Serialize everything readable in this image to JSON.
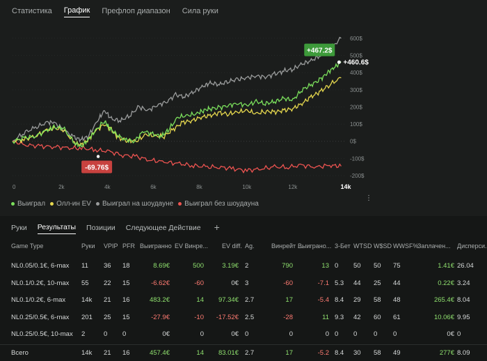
{
  "top_tabs": [
    {
      "label": "Статистика",
      "active": false
    },
    {
      "label": "График",
      "active": true
    },
    {
      "label": "Префлоп диапазон",
      "active": false
    },
    {
      "label": "Сила руки",
      "active": false
    }
  ],
  "chart_data": {
    "type": "line",
    "x_max_label": "14k",
    "x_ticks": [
      "0",
      "2k",
      "4k",
      "6k",
      "8k",
      "10k",
      "12k",
      "14k"
    ],
    "x_range": [
      0,
      14500
    ],
    "y_ticks": [
      "600$",
      "500$",
      "400$",
      "300$",
      "200$",
      "100$",
      "0$",
      "-100$",
      "-200$"
    ],
    "y_range": [
      -200,
      620
    ],
    "series": [
      {
        "name": "Выиграл",
        "color": "#7be05c",
        "points": [
          [
            0,
            0
          ],
          [
            500,
            20
          ],
          [
            1000,
            30
          ],
          [
            1500,
            65
          ],
          [
            1800,
            80
          ],
          [
            2200,
            80
          ],
          [
            2700,
            -10
          ],
          [
            3000,
            -30
          ],
          [
            3300,
            10
          ],
          [
            3600,
            60
          ],
          [
            4000,
            120
          ],
          [
            4200,
            80
          ],
          [
            4500,
            40
          ],
          [
            4900,
            10
          ],
          [
            5300,
            0
          ],
          [
            5700,
            60
          ],
          [
            6100,
            40
          ],
          [
            6500,
            30
          ],
          [
            6800,
            70
          ],
          [
            7200,
            140
          ],
          [
            7600,
            150
          ],
          [
            8000,
            160
          ],
          [
            8300,
            180
          ],
          [
            8600,
            190
          ],
          [
            9000,
            195
          ],
          [
            9400,
            210
          ],
          [
            9800,
            220
          ],
          [
            10200,
            210
          ],
          [
            10600,
            230
          ],
          [
            11000,
            220
          ],
          [
            11400,
            230
          ],
          [
            11800,
            250
          ],
          [
            12200,
            240
          ],
          [
            12600,
            300
          ],
          [
            13000,
            330
          ],
          [
            13400,
            360
          ],
          [
            13700,
            400
          ],
          [
            14000,
            430
          ],
          [
            14300,
            460.6
          ]
        ]
      },
      {
        "name": "Олл-ин EV",
        "color": "#e6d84e",
        "points": [
          [
            0,
            0
          ],
          [
            500,
            10
          ],
          [
            1000,
            30
          ],
          [
            1500,
            65
          ],
          [
            1800,
            75
          ],
          [
            2200,
            70
          ],
          [
            2700,
            -10
          ],
          [
            3000,
            -20
          ],
          [
            3300,
            10
          ],
          [
            3600,
            60
          ],
          [
            4000,
            100
          ],
          [
            4300,
            70
          ],
          [
            4600,
            20
          ],
          [
            5000,
            5
          ],
          [
            5400,
            0
          ],
          [
            5800,
            40
          ],
          [
            6200,
            30
          ],
          [
            6600,
            30
          ],
          [
            7000,
            70
          ],
          [
            7400,
            110
          ],
          [
            7800,
            120
          ],
          [
            8200,
            140
          ],
          [
            8600,
            150
          ],
          [
            9000,
            165
          ],
          [
            9400,
            160
          ],
          [
            9800,
            170
          ],
          [
            10200,
            180
          ],
          [
            10600,
            160
          ],
          [
            11000,
            175
          ],
          [
            11400,
            170
          ],
          [
            11800,
            180
          ],
          [
            12200,
            190
          ],
          [
            12600,
            220
          ],
          [
            13000,
            260
          ],
          [
            13400,
            290
          ],
          [
            13800,
            330
          ],
          [
            14300,
            370
          ]
        ]
      },
      {
        "name": "Выиграл на шоудауне",
        "color": "#9a9c9c",
        "points": [
          [
            0,
            0
          ],
          [
            500,
            50
          ],
          [
            1000,
            80
          ],
          [
            1500,
            110
          ],
          [
            1800,
            110
          ],
          [
            2200,
            70
          ],
          [
            2700,
            20
          ],
          [
            3000,
            10
          ],
          [
            3300,
            30
          ],
          [
            3700,
            120
          ],
          [
            4000,
            180
          ],
          [
            4300,
            130
          ],
          [
            4700,
            120
          ],
          [
            5100,
            150
          ],
          [
            5500,
            200
          ],
          [
            5900,
            180
          ],
          [
            6300,
            210
          ],
          [
            6700,
            230
          ],
          [
            7100,
            270
          ],
          [
            7500,
            260
          ],
          [
            7900,
            290
          ],
          [
            8300,
            320
          ],
          [
            8600,
            340
          ],
          [
            9000,
            330
          ],
          [
            9400,
            350
          ],
          [
            9800,
            360
          ],
          [
            10200,
            370
          ],
          [
            10600,
            380
          ],
          [
            11000,
            375
          ],
          [
            11400,
            390
          ],
          [
            11800,
            410
          ],
          [
            12200,
            420
          ],
          [
            12600,
            450
          ],
          [
            13000,
            470
          ],
          [
            13400,
            500
          ],
          [
            13800,
            540
          ],
          [
            14300,
            600
          ]
        ]
      },
      {
        "name": "Выиграл без шоудауна",
        "color": "#ee5451",
        "points": [
          [
            0,
            0
          ],
          [
            600,
            -20
          ],
          [
            1200,
            -30
          ],
          [
            1800,
            -30
          ],
          [
            2400,
            -40
          ],
          [
            3000,
            -40
          ],
          [
            3600,
            -50
          ],
          [
            4200,
            -60
          ],
          [
            4800,
            -80
          ],
          [
            5400,
            -90
          ],
          [
            6000,
            -110
          ],
          [
            6600,
            -120
          ],
          [
            7200,
            -130
          ],
          [
            7800,
            -140
          ],
          [
            8400,
            -150
          ],
          [
            9000,
            -150
          ],
          [
            9600,
            -160
          ],
          [
            10200,
            -170
          ],
          [
            10800,
            -160
          ],
          [
            11400,
            -150
          ],
          [
            12000,
            -150
          ],
          [
            12600,
            -140
          ],
          [
            13200,
            -150
          ],
          [
            13800,
            -140
          ],
          [
            14300,
            -145
          ]
        ]
      }
    ],
    "annotations": [
      {
        "label": "+467.2$",
        "x": 13600,
        "y": 520,
        "style": "badge-green"
      },
      {
        "label": "+460.6$",
        "x": 14300,
        "y": 460.6,
        "style": "plain"
      },
      {
        "label": "-69.76$",
        "x": 3000,
        "y": -60,
        "style": "badge-red"
      }
    ]
  },
  "legend": [
    {
      "label": "Выиграл",
      "color": "#7be05c"
    },
    {
      "label": "Олл-ин EV",
      "color": "#e6d84e"
    },
    {
      "label": "Выиграл на шоудауне",
      "color": "#9a9c9c"
    },
    {
      "label": "Выиграл без шоудауна",
      "color": "#ee5451"
    }
  ],
  "more_menu_label": "⋮",
  "bottom_tabs": [
    {
      "label": "Руки",
      "active": false
    },
    {
      "label": "Результаты",
      "active": true
    },
    {
      "label": "Позиции",
      "active": false
    },
    {
      "label": "Следующее Действие",
      "active": false
    }
  ],
  "add_tab_label": "+",
  "table": {
    "columns": [
      "Game Type",
      "Руки",
      "VPIP",
      "PFR",
      "Выигранно",
      "EV Винре...",
      "EV diff.",
      "Ag.",
      "Винрейт ...",
      "Выиграно...",
      "3-Бет",
      "WTSD",
      "W$SD",
      "WWSF%",
      "Заплачен...",
      "Дисперси..."
    ],
    "rows": [
      [
        "NL0.05/0.1€, 6-max",
        "11",
        "36",
        "18",
        "8.69€",
        "500",
        "3.19€",
        "2",
        "790",
        "13",
        "0",
        "50",
        "50",
        "75",
        "1.41€",
        "26.04"
      ],
      [
        "NL0.1/0.2€, 10-max",
        "55",
        "22",
        "15",
        "-6.62€",
        "-60",
        "0€",
        "3",
        "-60",
        "-7.1",
        "5.3",
        "44",
        "25",
        "44",
        "0.22€",
        "3.24"
      ],
      [
        "NL0.1/0.2€, 6-max",
        "14k",
        "21",
        "16",
        "483.2€",
        "14",
        "97.34€",
        "2.7",
        "17",
        "-5.4",
        "8.4",
        "29",
        "58",
        "48",
        "265.4€",
        "8.04"
      ],
      [
        "NL0.25/0.5€, 6-max",
        "201",
        "25",
        "15",
        "-27.9€",
        "-10",
        "-17.52€",
        "2.5",
        "-28",
        "11",
        "9.3",
        "42",
        "60",
        "61",
        "10.06€",
        "9.95"
      ],
      [
        "NL0.25/0.5€, 10-max",
        "2",
        "0",
        "0",
        "0€",
        "0",
        "0€",
        "0",
        "0",
        "0",
        "0",
        "0",
        "0",
        "0",
        "0€",
        "0"
      ]
    ],
    "total": [
      "Всего",
      "14k",
      "21",
      "16",
      "457.4€",
      "14",
      "83.01€",
      "2.7",
      "17",
      "-5.2",
      "8.4",
      "30",
      "58",
      "49",
      "277€",
      "8.09"
    ],
    "colored_columns": [
      4,
      5,
      6,
      8,
      9,
      14
    ]
  }
}
